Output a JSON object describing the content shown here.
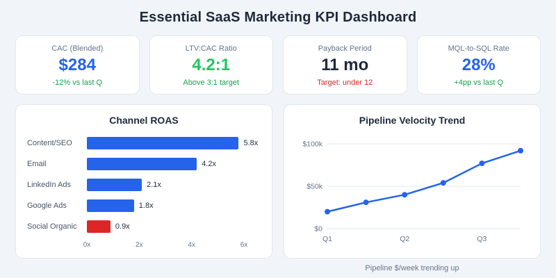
{
  "page": {
    "title": "Essential SaaS Marketing KPI Dashboard"
  },
  "kpis": [
    {
      "label": "CAC (Blended)",
      "value": "$284",
      "delta": "-12% vs last Q",
      "value_color": "#2563eb",
      "delta_color": "#16a34a"
    },
    {
      "label": "LTV:CAC Ratio",
      "value": "4.2:1",
      "delta": "Above 3:1 target",
      "value_color": "#22c55e",
      "delta_color": "#16a34a"
    },
    {
      "label": "Payback Period",
      "value": "11 mo",
      "delta": "Target: under 12",
      "value_color": "#1e293b",
      "delta_color": "#dc2626"
    },
    {
      "label": "MQL-to-SQL Rate",
      "value": "28%",
      "delta": "+4pp vs last Q",
      "value_color": "#2563eb",
      "delta_color": "#16a34a"
    }
  ],
  "chart_data": [
    {
      "type": "bar",
      "orientation": "horizontal",
      "title": "Channel ROAS",
      "categories": [
        "Content/SEO",
        "Email",
        "LinkedIn Ads",
        "Google Ads",
        "Social Organic"
      ],
      "values": [
        5.8,
        4.2,
        2.1,
        1.8,
        0.9
      ],
      "value_labels": [
        "5.8x",
        "4.2x",
        "2.1x",
        "1.8x",
        "0.9x"
      ],
      "bar_colors": [
        "#2563eb",
        "#2563eb",
        "#2563eb",
        "#2563eb",
        "#dc2626"
      ],
      "xlim": [
        0,
        6
      ],
      "x_ticks": [
        "0x",
        "2x",
        "4x",
        "6x"
      ],
      "grid": false
    },
    {
      "type": "line",
      "title": "Pipeline Velocity Trend",
      "x": [
        1,
        1.5,
        2,
        2.5,
        3,
        3.5
      ],
      "values_k": [
        20,
        31,
        40,
        54,
        77,
        92
      ],
      "ylim_k": [
        0,
        100
      ],
      "y_ticks": [
        "$0",
        "$50k",
        "$100k"
      ],
      "x_ticks": [
        "Q1",
        "Q2",
        "Q3"
      ],
      "line_color": "#2563eb",
      "grid": true,
      "caption": "Pipeline $/week trending up"
    }
  ],
  "colors": {
    "background": "#f1f5f9",
    "card_background": "#ffffff",
    "card_border": "#e2e8f0",
    "accent_blue": "#2563eb",
    "accent_green": "#22c55e",
    "accent_red": "#dc2626",
    "text_dark": "#1e293b",
    "text_muted": "#64748b",
    "gridline": "#e2e8f0"
  }
}
